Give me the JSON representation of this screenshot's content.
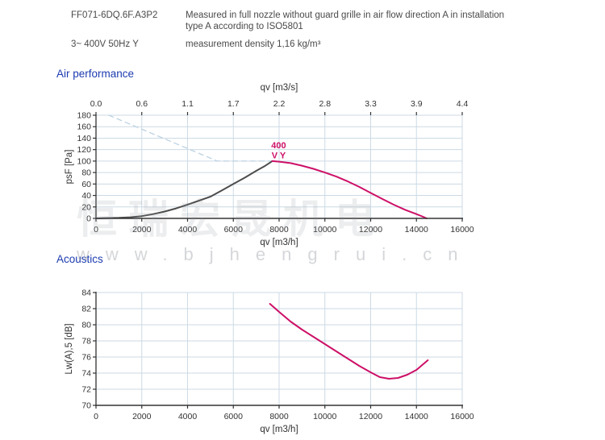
{
  "header": {
    "model": "FF071-6DQ.6F.A3P2",
    "power": "3~ 400V 50Hz Y",
    "note_line1": "Measured in full nozzle without guard grille in air flow direction A in installation",
    "note_line2": "type A according to ISO5801",
    "density": "measurement density 1,16 kg/m³"
  },
  "sections": {
    "air_title": "Air performance",
    "acoustics_title": "Acoustics"
  },
  "watermark": {
    "cn": "恒瑞宏晟机电",
    "url": "www.bjhengrui.cn"
  },
  "colors": {
    "curve_pink": "#cd1067",
    "curve_gray": "#4d4d4d",
    "guide_dashed": "#bcd2e2",
    "grid": "#ccdae5",
    "axis": "#333333",
    "tick_text": "#333333",
    "heading_blue": "#1c3bb0"
  },
  "chart_data": [
    {
      "type": "line",
      "title": "Air performance",
      "xlabel": "qv [m3/h]",
      "xlabel_top": "qv [m3/s]",
      "ylabel": "psF [Pa]",
      "xlim": [
        0,
        16000
      ],
      "ylim": [
        0,
        180
      ],
      "grid": true,
      "x_ticks": [
        0,
        2000,
        4000,
        6000,
        8000,
        10000,
        12000,
        14000,
        16000
      ],
      "x_ticks_top": [
        "0.0",
        "0.6",
        "1.1",
        "1.7",
        "2.2",
        "2.8",
        "3.3",
        "3.9",
        "4.4"
      ],
      "y_ticks": [
        0,
        20,
        40,
        60,
        80,
        100,
        120,
        140,
        160,
        180
      ],
      "annotation": {
        "lines": [
          "400",
          "V Y"
        ],
        "x": 7700,
        "y": 100,
        "color": "#cd1067"
      },
      "series": [
        {
          "name": "limit-curve-dashed",
          "style": "dashed",
          "color": "#bcd2e2",
          "points": [
            [
              560,
              180
            ],
            [
              5300,
              100
            ],
            [
              7700,
              100
            ]
          ]
        },
        {
          "name": "system-resistance-curve",
          "style": "solid",
          "color": "#4d4d4d",
          "points": [
            [
              0,
              0
            ],
            [
              500,
              0.5
            ],
            [
              1000,
              1
            ],
            [
              1500,
              2
            ],
            [
              2000,
              4
            ],
            [
              2500,
              7.5
            ],
            [
              3000,
              12
            ],
            [
              3500,
              17.5
            ],
            [
              4000,
              24
            ],
            [
              4500,
              31
            ],
            [
              5000,
              38
            ],
            [
              5500,
              49
            ],
            [
              6000,
              60
            ],
            [
              6500,
              71
            ],
            [
              7000,
              83
            ],
            [
              7400,
              92
            ],
            [
              7700,
              100
            ]
          ]
        },
        {
          "name": "fan-curve-400V-Y",
          "style": "solid",
          "color": "#cd1067",
          "points": [
            [
              7700,
              100
            ],
            [
              8000,
              99
            ],
            [
              8500,
              96.5
            ],
            [
              9000,
              92
            ],
            [
              9500,
              86.5
            ],
            [
              10000,
              80
            ],
            [
              10500,
              73
            ],
            [
              11000,
              64.5
            ],
            [
              11500,
              55
            ],
            [
              12000,
              44.5
            ],
            [
              12500,
              34
            ],
            [
              13000,
              24
            ],
            [
              13500,
              15
            ],
            [
              14000,
              7.5
            ],
            [
              14250,
              3.5
            ],
            [
              14450,
              0
            ]
          ]
        }
      ]
    },
    {
      "type": "line",
      "title": "Acoustics",
      "xlabel": "qv [m3/h]",
      "ylabel": "Lw(A),5 [dB]",
      "xlim": [
        0,
        16000
      ],
      "ylim": [
        70,
        84
      ],
      "grid": true,
      "x_ticks": [
        0,
        2000,
        4000,
        6000,
        8000,
        10000,
        12000,
        14000,
        16000
      ],
      "y_ticks": [
        70,
        72,
        74,
        76,
        78,
        80,
        82,
        84
      ],
      "series": [
        {
          "name": "sound-power-curve",
          "style": "solid",
          "color": "#cd1067",
          "points": [
            [
              7600,
              82.6
            ],
            [
              8000,
              81.6
            ],
            [
              8500,
              80.4
            ],
            [
              9000,
              79.4
            ],
            [
              9500,
              78.5
            ],
            [
              10000,
              77.6
            ],
            [
              10500,
              76.7
            ],
            [
              11000,
              75.8
            ],
            [
              11500,
              74.9
            ],
            [
              12000,
              74.1
            ],
            [
              12400,
              73.5
            ],
            [
              12800,
              73.3
            ],
            [
              13200,
              73.4
            ],
            [
              13600,
              73.8
            ],
            [
              14000,
              74.4
            ],
            [
              14500,
              75.6
            ]
          ]
        }
      ]
    }
  ]
}
